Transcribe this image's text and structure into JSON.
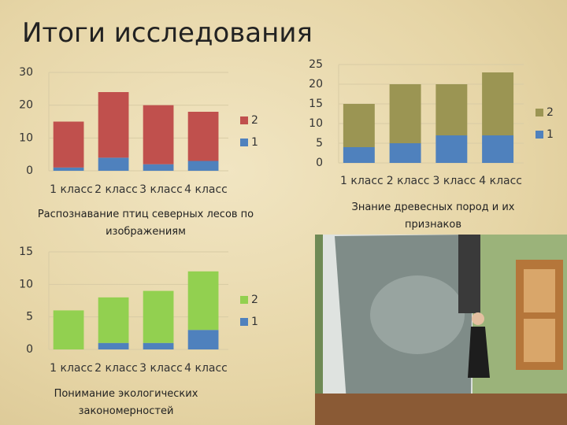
{
  "title": "Итоги исследования",
  "chart_data": [
    {
      "type": "stacked_bar",
      "title": "Распознавание птиц северных лесов по изображениям",
      "categories": [
        "1 класс",
        "2 класс",
        "3 класс",
        "4 класс"
      ],
      "series": [
        {
          "name": "1",
          "color": "#4f81bd",
          "values": [
            1,
            4,
            2,
            3
          ]
        },
        {
          "name": "2",
          "color": "#c0504d",
          "values": [
            14,
            20,
            18,
            15
          ]
        }
      ],
      "ylim": [
        0,
        30
      ],
      "yticks": [
        0,
        10,
        20,
        30
      ],
      "grid": true,
      "legend": "right"
    },
    {
      "type": "stacked_bar",
      "title": "Знание древесных пород и их признаков",
      "categories": [
        "1 класс",
        "2 класс",
        "3 класс",
        "4 класс"
      ],
      "series": [
        {
          "name": "1",
          "color": "#4f81bd",
          "values": [
            4,
            5,
            7,
            7
          ]
        },
        {
          "name": "2",
          "color": "#9b9553",
          "values": [
            11,
            15,
            13,
            16
          ]
        }
      ],
      "ylim": [
        0,
        25
      ],
      "yticks": [
        0,
        5,
        10,
        15,
        20,
        25
      ],
      "grid": true,
      "legend": "right"
    },
    {
      "type": "stacked_bar",
      "title": "Понимание экологических закономерностей",
      "categories": [
        "1 класс",
        "2 класс",
        "3 класс",
        "4 класс"
      ],
      "series": [
        {
          "name": "1",
          "color": "#4f81bd",
          "values": [
            0,
            1,
            1,
            3
          ]
        },
        {
          "name": "2",
          "color": "#92d050",
          "values": [
            6,
            7,
            8,
            9
          ]
        }
      ],
      "ylim": [
        0,
        15
      ],
      "yticks": [
        0,
        5,
        10,
        15
      ],
      "grid": true,
      "legend": "right"
    }
  ]
}
